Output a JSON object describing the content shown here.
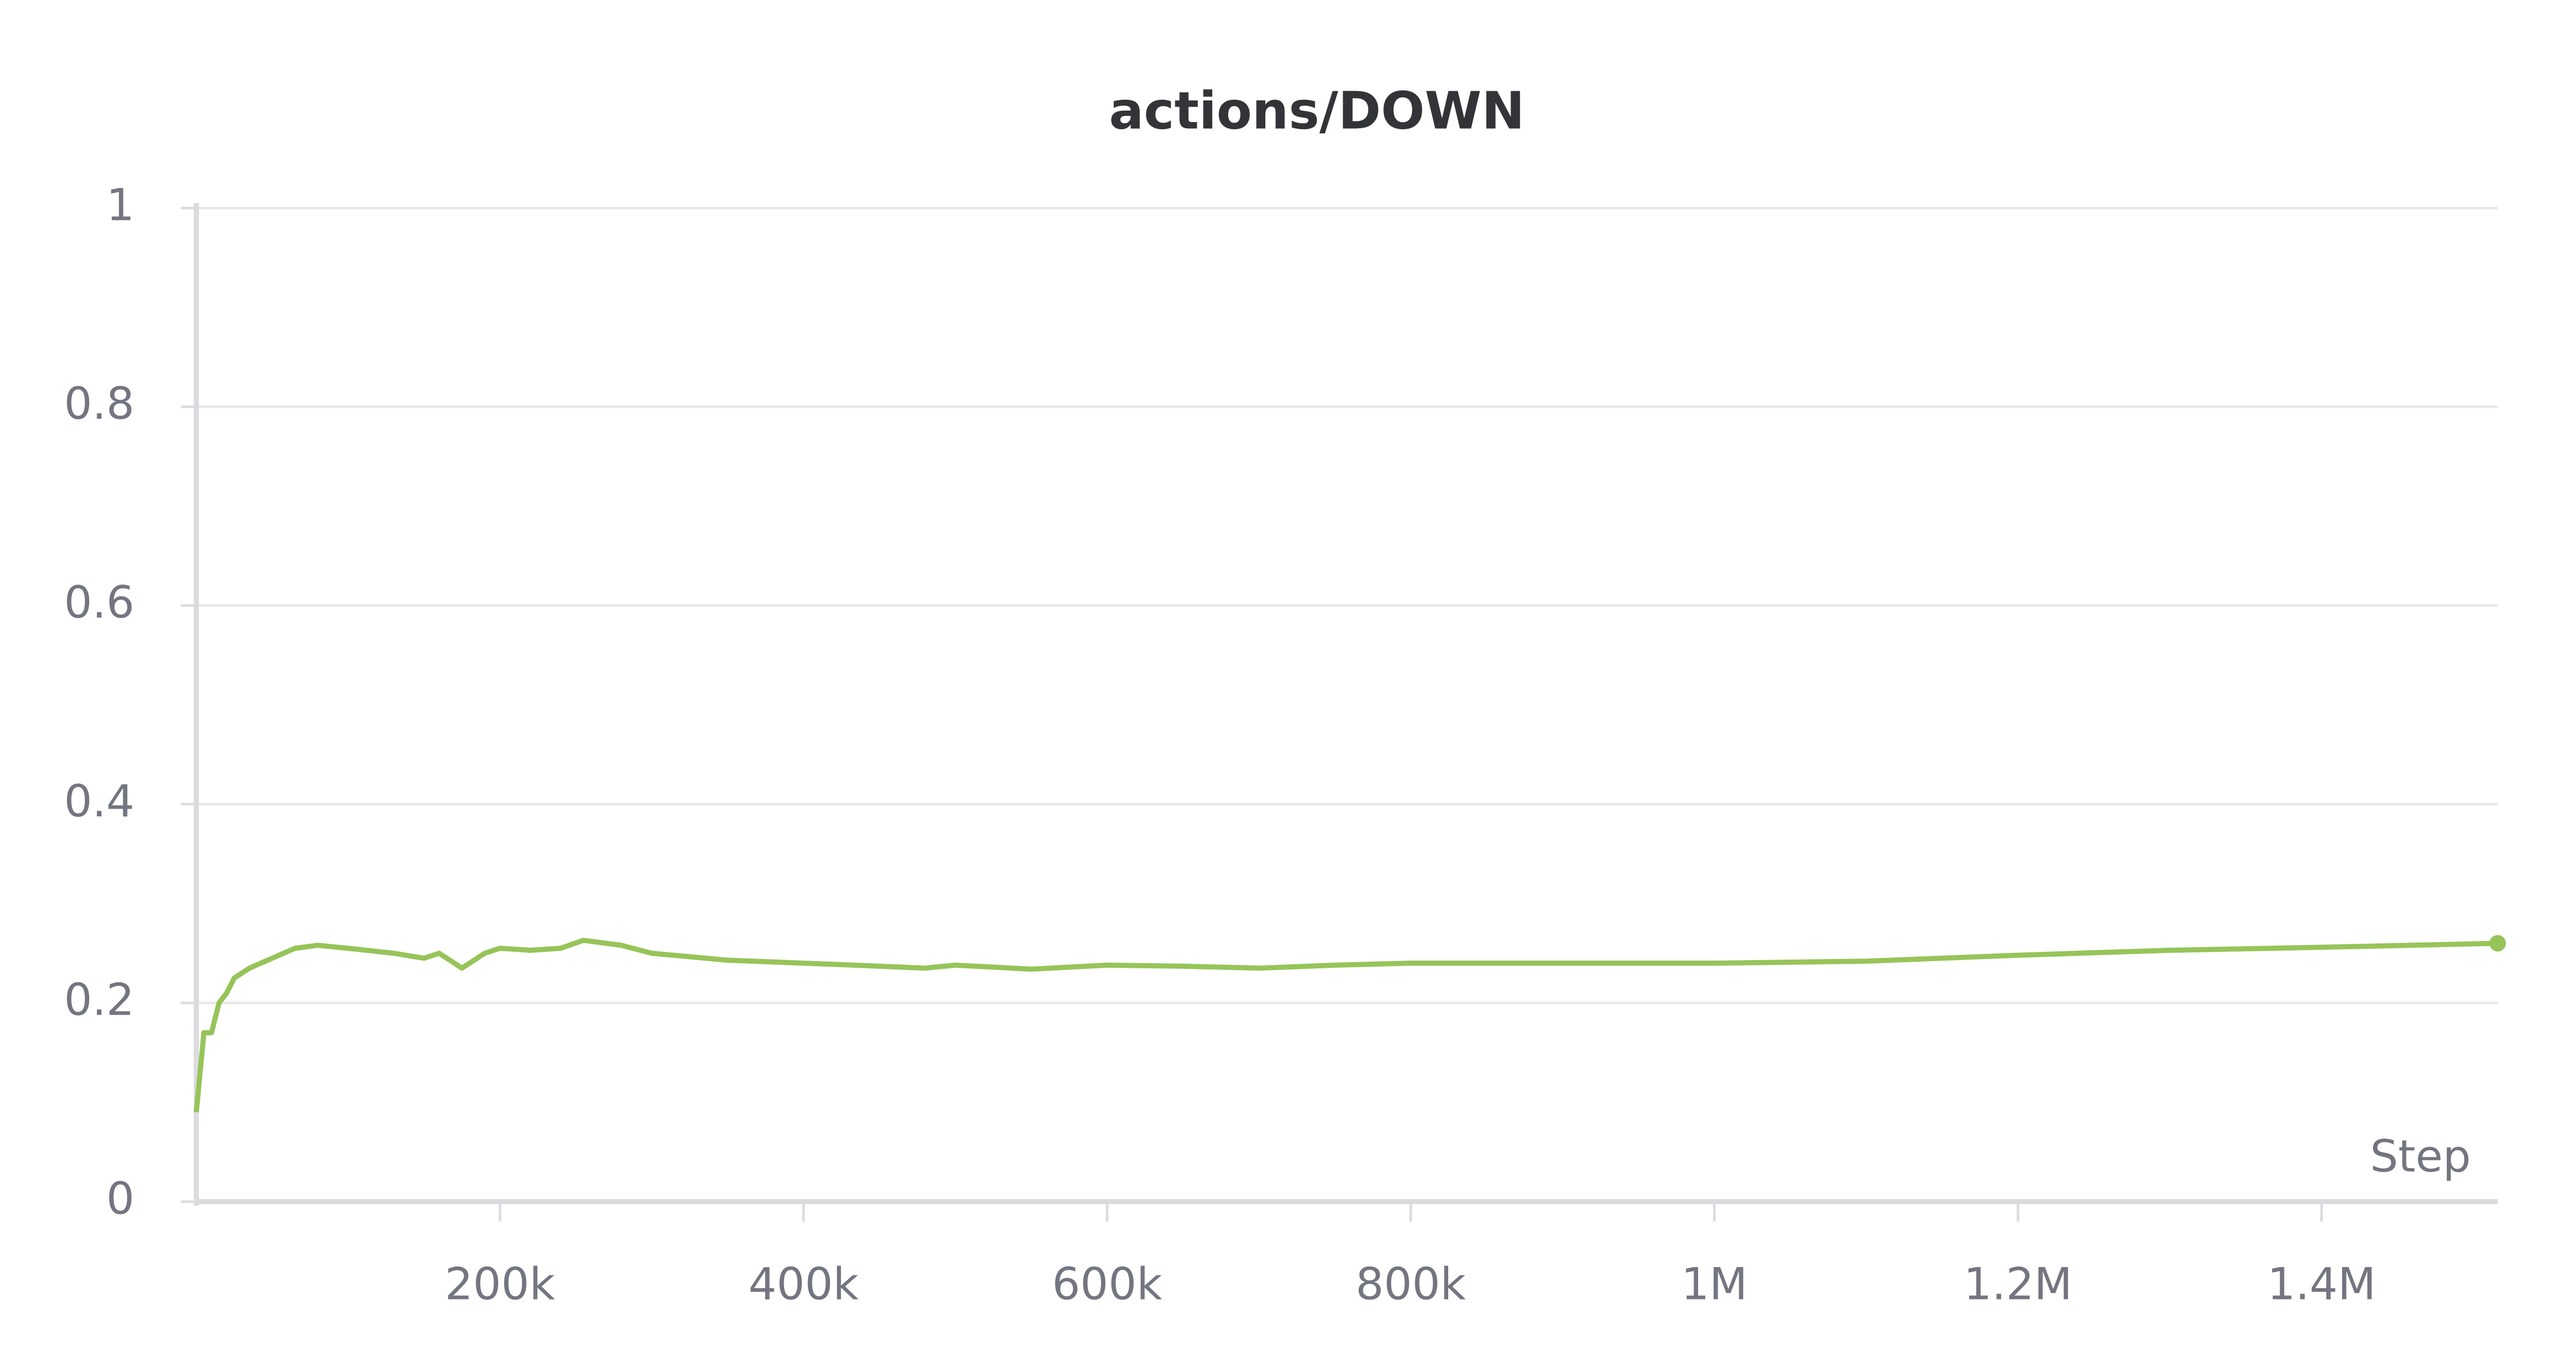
{
  "chart_data": {
    "type": "line",
    "title": "actions/DOWN",
    "x_label": "Step",
    "x": [
      0,
      5000,
      10000,
      15000,
      20000,
      25000,
      35000,
      50000,
      65000,
      80000,
      100000,
      130000,
      150000,
      160000,
      175000,
      190000,
      200000,
      220000,
      240000,
      255000,
      280000,
      300000,
      350000,
      400000,
      450000,
      480000,
      500000,
      550000,
      600000,
      650000,
      700000,
      750000,
      800000,
      900000,
      1000000,
      1100000,
      1200000,
      1300000,
      1400000,
      1516000
    ],
    "series": [
      {
        "name": "actions/DOWN",
        "color": "#97c459",
        "values": [
          0.09,
          0.17,
          0.17,
          0.2,
          0.21,
          0.225,
          0.235,
          0.245,
          0.255,
          0.258,
          0.255,
          0.25,
          0.245,
          0.25,
          0.235,
          0.25,
          0.255,
          0.253,
          0.255,
          0.263,
          0.258,
          0.25,
          0.243,
          0.24,
          0.237,
          0.235,
          0.238,
          0.234,
          0.238,
          0.237,
          0.235,
          0.238,
          0.24,
          0.24,
          0.24,
          0.242,
          0.248,
          0.253,
          0.256,
          0.26
        ]
      }
    ],
    "xlim": [
      0,
      1516000
    ],
    "xticks": [
      {
        "value": 200000,
        "label": "200k"
      },
      {
        "value": 400000,
        "label": "400k"
      },
      {
        "value": 600000,
        "label": "600k"
      },
      {
        "value": 800000,
        "label": "800k"
      },
      {
        "value": 1000000,
        "label": "1M"
      },
      {
        "value": 1200000,
        "label": "1.2M"
      },
      {
        "value": 1400000,
        "label": "1.4M"
      }
    ],
    "ylim": [
      0,
      1
    ],
    "yticks": [
      0,
      0.2,
      0.4,
      0.6,
      0.8,
      1
    ],
    "grid": true
  }
}
